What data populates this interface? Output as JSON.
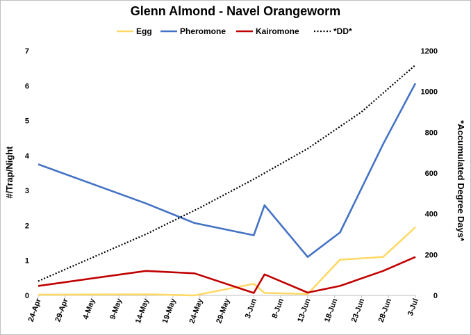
{
  "chart_data": {
    "type": "line",
    "title": "Glenn Almond - Navel Orangeworm",
    "ylabel": "#/Trap/Night",
    "y2label": "*Accumulated Degree Days*",
    "ylim": [
      0,
      7
    ],
    "yticks": [
      "0",
      "1",
      "2",
      "3",
      "4",
      "5",
      "6",
      "7"
    ],
    "y2lim": [
      0,
      1200
    ],
    "y2ticks": [
      "0",
      "200",
      "400",
      "600",
      "800",
      "1000",
      "1200"
    ],
    "xlim": [
      "2024-04-24",
      "2024-07-03"
    ],
    "xticks": [
      {
        "date": "2024-04-24",
        "label": "24-Apr"
      },
      {
        "date": "2024-04-29",
        "label": "29-Apr"
      },
      {
        "date": "2024-05-04",
        "label": "4-May"
      },
      {
        "date": "2024-05-09",
        "label": "9-May"
      },
      {
        "date": "2024-05-14",
        "label": "14-May"
      },
      {
        "date": "2024-05-19",
        "label": "19-May"
      },
      {
        "date": "2024-05-24",
        "label": "24-May"
      },
      {
        "date": "2024-05-29",
        "label": "29-May"
      },
      {
        "date": "2024-06-03",
        "label": "3-Jun"
      },
      {
        "date": "2024-06-08",
        "label": "8-Jun"
      },
      {
        "date": "2024-06-13",
        "label": "13-Jun"
      },
      {
        "date": "2024-06-18",
        "label": "18-Jun"
      },
      {
        "date": "2024-06-23",
        "label": "23-Jun"
      },
      {
        "date": "2024-06-28",
        "label": "28-Jun"
      },
      {
        "date": "2024-07-03",
        "label": "3-Jul"
      }
    ],
    "grid": false,
    "legend": "top-center",
    "series": [
      {
        "name": "Egg",
        "color": "#FFD966",
        "style": "solid",
        "axis": "left",
        "x": [
          "2024-04-24",
          "2024-05-14",
          "2024-05-23",
          "2024-06-03",
          "2024-06-05",
          "2024-06-13",
          "2024-06-19",
          "2024-06-27",
          "2024-07-03"
        ],
        "y": [
          0.02,
          0.03,
          0.0,
          0.33,
          0.07,
          0.04,
          1.02,
          1.1,
          1.95
        ]
      },
      {
        "name": "Pheromone",
        "color": "#4472C4",
        "style": "solid",
        "axis": "left",
        "x": [
          "2024-04-24",
          "2024-05-14",
          "2024-05-23",
          "2024-06-03",
          "2024-06-05",
          "2024-06-13",
          "2024-06-19",
          "2024-06-27",
          "2024-07-03"
        ],
        "y": [
          3.75,
          2.63,
          2.07,
          1.72,
          2.58,
          1.1,
          1.8,
          4.33,
          6.07
        ]
      },
      {
        "name": "Kairomone",
        "color": "#C00000",
        "style": "solid",
        "axis": "left",
        "x": [
          "2024-04-24",
          "2024-05-14",
          "2024-05-23",
          "2024-06-03",
          "2024-06-05",
          "2024-06-13",
          "2024-06-19",
          "2024-06-27",
          "2024-07-03"
        ],
        "y": [
          0.27,
          0.7,
          0.63,
          0.07,
          0.6,
          0.08,
          0.27,
          0.7,
          1.1
        ]
      },
      {
        "name": "*DD*",
        "color": "#000000",
        "style": "dotted",
        "axis": "right",
        "x": [
          "2024-04-24",
          "2024-05-04",
          "2024-05-14",
          "2024-05-24",
          "2024-06-03",
          "2024-06-13",
          "2024-06-23",
          "2024-07-03"
        ],
        "y": [
          70,
          185,
          300,
          430,
          570,
          720,
          900,
          1130
        ]
      }
    ]
  }
}
